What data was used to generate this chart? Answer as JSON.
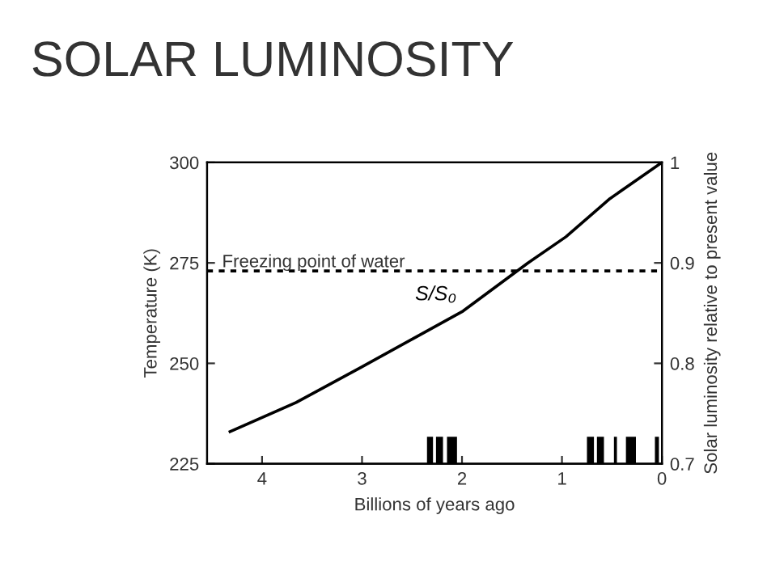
{
  "chart_data": {
    "type": "line",
    "title": "SOLAR LUMINOSITY",
    "xlabel": "Billions of years ago",
    "ylabel": "Temperature (K)",
    "y2label": "Solar luminosity relative to present value",
    "x": [
      4.32,
      3.66,
      3.01,
      2.5,
      1.99,
      1.34,
      0.96,
      0.52,
      0
    ],
    "series": [
      {
        "name": "S/S₀",
        "color": "#000000",
        "axis": "y2",
        "values": [
          0.732,
          0.761,
          0.796,
          0.824,
          0.852,
          0.9,
          0.926,
          0.964,
          1.0
        ]
      }
    ],
    "xlim": [
      4.55,
      0
    ],
    "xticks": [
      4,
      3,
      2,
      1,
      0
    ],
    "ylim": [
      225,
      300
    ],
    "yticks": [
      225,
      250,
      275,
      300
    ],
    "y2lim": [
      0.7,
      1
    ],
    "y2ticks": [
      0.7,
      0.8,
      0.9,
      {
        "value": 1,
        "label": "1"
      }
    ],
    "ref_lines": [
      {
        "axis": "y",
        "value": 273,
        "label": "Freezing point of water",
        "color": "#000000",
        "line_style": "dotted"
      }
    ],
    "bands": [
      {
        "axis": "x",
        "from": 2.35,
        "to": 2.29,
        "color": "#000000"
      },
      {
        "axis": "x",
        "from": 2.26,
        "to": 2.19,
        "color": "#000000"
      },
      {
        "axis": "x",
        "from": 2.15,
        "to": 2.05,
        "color": "#000000"
      },
      {
        "axis": "x",
        "from": 0.75,
        "to": 0.68,
        "color": "#000000"
      },
      {
        "axis": "x",
        "from": 0.65,
        "to": 0.58,
        "color": "#000000"
      },
      {
        "axis": "x",
        "from": 0.48,
        "to": 0.45,
        "color": "#000000"
      },
      {
        "axis": "x",
        "from": 0.36,
        "to": 0.26,
        "color": "#000000"
      },
      {
        "axis": "x",
        "from": 0.07,
        "to": 0.03,
        "color": "#000000"
      }
    ],
    "grid": false,
    "legend": false,
    "marker": "none",
    "line_style": "solid"
  }
}
